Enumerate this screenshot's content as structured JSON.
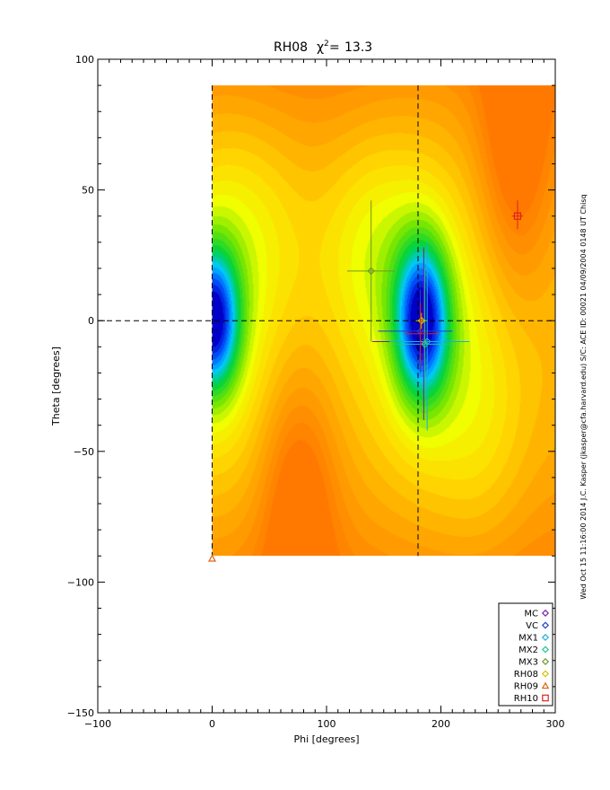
{
  "chart_data": {
    "type": "heatmap",
    "title": "RH08",
    "subtitle_value": "13.3",
    "xlabel": "Phi [degrees]",
    "ylabel": "Theta [degrees]",
    "xlim": [
      -100,
      300
    ],
    "ylim": [
      -150,
      100
    ],
    "xticks": [
      -100,
      0,
      100,
      200,
      300
    ],
    "yticks": [
      -150,
      -100,
      -50,
      0,
      50,
      100
    ],
    "x_tick_labels": [
      "−100",
      "0",
      "100",
      "200",
      "300"
    ],
    "y_tick_labels": [
      "−150",
      "−100",
      "−50",
      "0",
      "50",
      "100"
    ],
    "field_extent": {
      "phi": [
        0,
        300
      ],
      "theta": [
        -90,
        90
      ]
    },
    "reference_lines": {
      "phi": [
        0,
        180
      ],
      "theta": [
        0
      ]
    },
    "points": [
      {
        "label": "MC",
        "phi": 185,
        "theta": -8,
        "marker": "diamond",
        "color": "#7a1fa2",
        "phi_err": [
          140,
          220
        ],
        "theta_err": [
          -38,
          28
        ]
      },
      {
        "label": "VC",
        "phi": 182,
        "theta": -4,
        "marker": "diamond",
        "color": "#1f3fd0",
        "phi_err": [
          145,
          210
        ],
        "theta_err": [
          -20,
          12
        ]
      },
      {
        "label": "MX1",
        "phi": 188,
        "theta": -8,
        "marker": "diamond",
        "color": "#1ab0e0",
        "phi_err": [
          155,
          225
        ],
        "theta_err": [
          -42,
          30
        ]
      },
      {
        "label": "MX2",
        "phi": 186,
        "theta": -9,
        "marker": "diamond",
        "color": "#20c890",
        "phi_err": [
          160,
          210
        ],
        "theta_err": [
          -30,
          20
        ]
      },
      {
        "label": "MX3",
        "phi": 139,
        "theta": 19,
        "marker": "diamond",
        "color": "#6c9a2a",
        "phi_err": [
          118,
          160
        ],
        "theta_err": [
          -8,
          46
        ]
      },
      {
        "label": "RH08",
        "phi": 183,
        "theta": 0,
        "marker": "diamond",
        "color": "#d4c200",
        "phi_err": [
          178,
          188
        ],
        "theta_err": [
          -3,
          3
        ]
      },
      {
        "label": "RH09",
        "phi": 0,
        "theta": -91,
        "marker": "triangle",
        "color": "#e06010",
        "phi_err": null,
        "theta_err": null
      },
      {
        "label": "RH10",
        "phi": 267,
        "theta": 40,
        "marker": "square",
        "color": "#e02020",
        "phi_err": [
          262,
          272
        ],
        "theta_err": [
          35,
          46
        ]
      },
      {
        "label": "",
        "phi": 182,
        "theta": -5,
        "marker": "none",
        "color": "#e02020",
        "phi_err": [
          168,
          198
        ],
        "theta_err": [
          -17,
          7
        ]
      }
    ],
    "legend": {
      "placement": "bottom-right",
      "entries": [
        {
          "label": "MC",
          "marker": "diamond",
          "color": "#7a1fa2"
        },
        {
          "label": "VC",
          "marker": "diamond",
          "color": "#1f3fd0"
        },
        {
          "label": "MX1",
          "marker": "diamond",
          "color": "#1ab0e0"
        },
        {
          "label": "MX2",
          "marker": "diamond",
          "color": "#20c890"
        },
        {
          "label": "MX3",
          "marker": "diamond",
          "color": "#6c9a2a"
        },
        {
          "label": "RH08",
          "marker": "diamond",
          "color": "#d4c200"
        },
        {
          "label": "RH09",
          "marker": "triangle",
          "color": "#e06010"
        },
        {
          "label": "RH10",
          "marker": "square",
          "color": "#e02020"
        }
      ]
    },
    "side_note": "Wed Oct 15 11:16:00 2014   J.C. Kasper (jkasper@cfa.harvard.edu)   S/C: ACE ID: 00021 04/09/2004  0148 UT Chisq"
  }
}
